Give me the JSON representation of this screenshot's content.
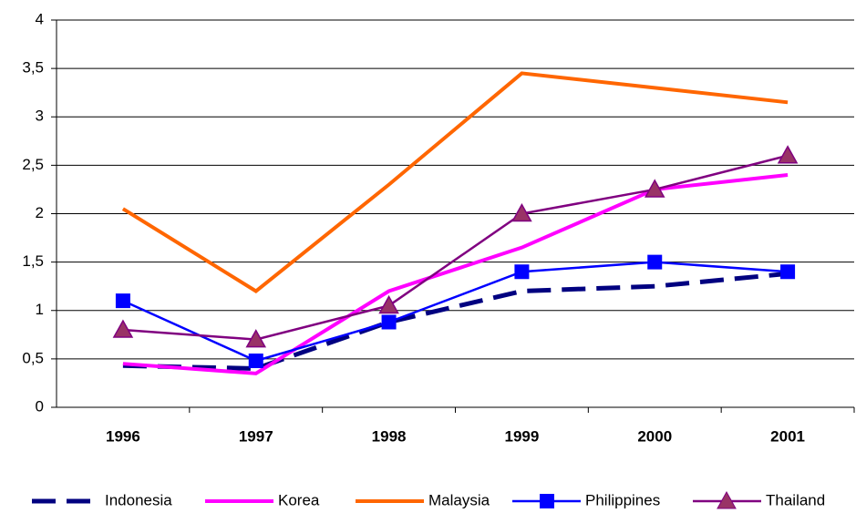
{
  "chart_data": {
    "type": "line",
    "categories": [
      "1996",
      "1997",
      "1998",
      "1999",
      "2000",
      "2001"
    ],
    "series": [
      {
        "name": "Indonesia",
        "color": "#000080",
        "dashed": true,
        "values": [
          0.43,
          0.4,
          0.88,
          1.2,
          1.25,
          1.38
        ]
      },
      {
        "name": "Korea",
        "color": "#ff00ff",
        "values": [
          0.45,
          0.35,
          1.2,
          1.65,
          2.25,
          2.4
        ]
      },
      {
        "name": "Malaysia",
        "color": "#ff6600",
        "values": [
          2.05,
          1.2,
          2.3,
          3.45,
          3.3,
          3.15
        ]
      },
      {
        "name": "Philippines",
        "color": "#0000ff",
        "marker": "square",
        "values": [
          1.1,
          0.48,
          0.88,
          1.4,
          1.5,
          1.4
        ]
      },
      {
        "name": "Thailand",
        "color": "#800080",
        "marker": "triangle",
        "marker_fill": "#993366",
        "values": [
          0.8,
          0.7,
          1.05,
          2.0,
          2.25,
          2.6
        ]
      }
    ],
    "ylim": [
      0,
      4
    ],
    "yticks": [
      0,
      {
        "value": 0.5,
        "label": "0,5"
      },
      1,
      {
        "value": 1.5,
        "label": "1,5"
      },
      2,
      {
        "value": 2.5,
        "label": "2,5"
      },
      3,
      {
        "value": 3.5,
        "label": "3,5"
      },
      4
    ],
    "grid": true
  }
}
